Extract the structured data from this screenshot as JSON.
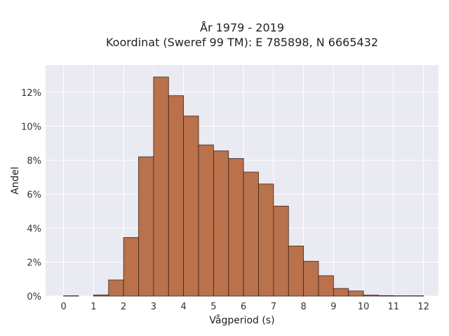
{
  "chart_data": {
    "type": "bar",
    "title_line1": "År 1979 - 2019",
    "title_line2": "Koordinat (Sweref 99 TM): E 785898, N 6665432",
    "xlabel": "Vågperiod (s)",
    "ylabel": "Andel",
    "bar_width": 0.5,
    "x": [
      0.0,
      0.5,
      1.0,
      1.5,
      2.0,
      2.5,
      3.0,
      3.5,
      4.0,
      4.5,
      5.0,
      5.5,
      6.0,
      6.5,
      7.0,
      7.5,
      8.0,
      8.5,
      9.0,
      9.5,
      10.0,
      10.5,
      11.0,
      11.5
    ],
    "values": [
      0.02,
      0.0,
      0.07,
      0.95,
      3.45,
      8.2,
      12.9,
      11.8,
      10.6,
      8.9,
      8.55,
      8.1,
      7.3,
      6.6,
      5.3,
      2.95,
      2.05,
      1.2,
      0.45,
      0.3,
      0.06,
      0.03,
      0.02,
      0.02
    ],
    "xlim": [
      -0.6,
      12.5
    ],
    "ylim": [
      0,
      13.6
    ],
    "xticks": [
      "0",
      "1",
      "2",
      "3",
      "4",
      "5",
      "6",
      "7",
      "8",
      "9",
      "10",
      "11",
      "12"
    ],
    "yticks": [
      "0%",
      "2%",
      "4%",
      "6%",
      "8%",
      "10%",
      "12%"
    ],
    "ytick_values": [
      0,
      2,
      4,
      6,
      8,
      10,
      12
    ],
    "grid": true,
    "colors": {
      "bar_fill": "#b5653a",
      "bar_stroke": "#3a2418",
      "plot_bg": "#eaeaf2",
      "grid": "#ffffff"
    }
  }
}
